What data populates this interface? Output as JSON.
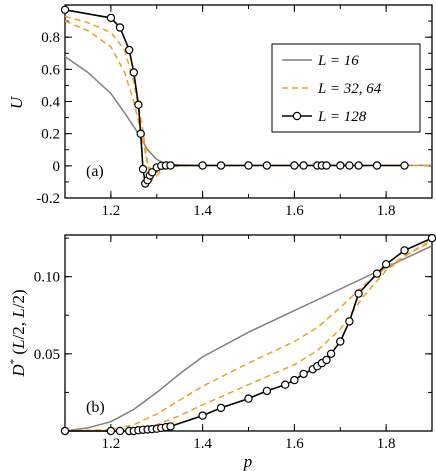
{
  "chart_data": [
    {
      "type": "line",
      "panel_label": "(a)",
      "ylabel": "U",
      "xlabel": "",
      "xlim": [
        1.1,
        1.9
      ],
      "ylim": [
        -0.2,
        1.0
      ],
      "xticks": [
        "1.2",
        "1.4",
        "1.6",
        "1.8"
      ],
      "yticks": [
        "-0.2",
        "0",
        "0.2",
        "0.4",
        "0.6",
        "0.8"
      ],
      "legend": {
        "position": "top-right"
      },
      "series": [
        {
          "name": "L = 16",
          "color": "#808080",
          "style": "solid",
          "x": [
            1.1,
            1.15,
            1.2,
            1.23,
            1.26,
            1.28,
            1.3,
            1.32,
            1.35,
            1.4,
            1.5,
            1.9
          ],
          "y": [
            0.68,
            0.58,
            0.45,
            0.33,
            0.2,
            0.1,
            0.04,
            0.01,
            0.005,
            0.003,
            0.003,
            0.003
          ]
        },
        {
          "name": "L = 32, 64",
          "color": "#f0a020",
          "style": "dashed",
          "x": [
            1.1,
            1.15,
            1.2,
            1.23,
            1.25,
            1.27,
            1.28,
            1.29,
            1.3,
            1.32,
            1.35,
            1.4,
            1.9
          ],
          "y": [
            0.9,
            0.84,
            0.74,
            0.58,
            0.4,
            0.15,
            0.02,
            -0.05,
            -0.04,
            -0.01,
            0.0,
            0.003,
            0.003
          ]
        },
        {
          "name": "",
          "color": "#f0a020",
          "style": "dashed",
          "x": [
            1.1,
            1.15,
            1.2,
            1.23,
            1.25,
            1.27,
            1.28,
            1.29,
            1.3,
            1.32,
            1.35,
            1.4,
            1.9
          ],
          "y": [
            0.93,
            0.89,
            0.83,
            0.72,
            0.52,
            0.22,
            0.0,
            -0.09,
            -0.06,
            -0.01,
            0.0,
            0.002,
            0.002
          ]
        },
        {
          "name": "L = 128",
          "color": "#000000",
          "style": "solid",
          "marker": "open-circle",
          "x": [
            1.1,
            1.2,
            1.22,
            1.24,
            1.25,
            1.26,
            1.265,
            1.27,
            1.275,
            1.28,
            1.285,
            1.29,
            1.3,
            1.31,
            1.32,
            1.33,
            1.4,
            1.44,
            1.5,
            1.54,
            1.6,
            1.62,
            1.65,
            1.66,
            1.67,
            1.7,
            1.72,
            1.74,
            1.78,
            1.84
          ],
          "y": [
            0.97,
            0.92,
            0.86,
            0.72,
            0.58,
            0.38,
            0.2,
            -0.02,
            -0.11,
            -0.09,
            -0.06,
            -0.04,
            -0.01,
            0.0,
            0.002,
            0.002,
            0.002,
            0.002,
            0.002,
            0.002,
            0.002,
            0.002,
            0.002,
            0.002,
            0.002,
            0.002,
            0.002,
            0.002,
            0.002,
            0.002
          ]
        }
      ]
    },
    {
      "type": "line",
      "panel_label": "(b)",
      "ylabel": "D*(L/2, L/2)",
      "xlabel": "p",
      "xlim": [
        1.1,
        1.9
      ],
      "ylim": [
        0,
        0.127
      ],
      "xticks": [
        "1.2",
        "1.4",
        "1.6",
        "1.8"
      ],
      "yticks": [
        "0.05",
        "0.10"
      ],
      "series": [
        {
          "name": "L = 16",
          "color": "#808080",
          "style": "solid",
          "x": [
            1.1,
            1.15,
            1.2,
            1.25,
            1.3,
            1.35,
            1.4,
            1.5,
            1.6,
            1.7,
            1.8,
            1.85,
            1.9
          ],
          "y": [
            0.0,
            0.002,
            0.006,
            0.014,
            0.025,
            0.037,
            0.048,
            0.064,
            0.078,
            0.092,
            0.106,
            0.113,
            0.12
          ]
        },
        {
          "name": "L = 32, 64",
          "color": "#f0a020",
          "style": "dashed",
          "x": [
            1.1,
            1.2,
            1.25,
            1.3,
            1.35,
            1.4,
            1.5,
            1.6,
            1.65,
            1.7,
            1.75,
            1.8,
            1.85,
            1.9
          ],
          "y": [
            0.0,
            0.001,
            0.004,
            0.011,
            0.02,
            0.029,
            0.044,
            0.058,
            0.067,
            0.08,
            0.094,
            0.106,
            0.115,
            0.123
          ]
        },
        {
          "name": "",
          "color": "#f0a020",
          "style": "dashed",
          "x": [
            1.1,
            1.2,
            1.25,
            1.28,
            1.3,
            1.35,
            1.4,
            1.5,
            1.6,
            1.65,
            1.7,
            1.75,
            1.8,
            1.85,
            1.9
          ],
          "y": [
            0.0,
            0.0,
            0.001,
            0.002,
            0.004,
            0.01,
            0.017,
            0.03,
            0.043,
            0.052,
            0.066,
            0.087,
            0.104,
            0.115,
            0.124
          ]
        },
        {
          "name": "L = 128",
          "color": "#000000",
          "style": "solid",
          "marker": "open-circle",
          "x": [
            1.1,
            1.2,
            1.22,
            1.24,
            1.25,
            1.26,
            1.27,
            1.28,
            1.29,
            1.3,
            1.31,
            1.32,
            1.33,
            1.4,
            1.44,
            1.5,
            1.54,
            1.58,
            1.6,
            1.62,
            1.64,
            1.65,
            1.66,
            1.67,
            1.68,
            1.7,
            1.72,
            1.74,
            1.78,
            1.8,
            1.84,
            1.9
          ],
          "y": [
            0.0,
            0.0,
            0.0,
            0.0,
            0.0,
            0.0005,
            0.0008,
            0.001,
            0.0012,
            0.0015,
            0.002,
            0.0025,
            0.003,
            0.01,
            0.015,
            0.021,
            0.026,
            0.03,
            0.033,
            0.037,
            0.04,
            0.042,
            0.044,
            0.046,
            0.05,
            0.058,
            0.071,
            0.089,
            0.102,
            0.108,
            0.117,
            0.125
          ]
        }
      ]
    }
  ]
}
